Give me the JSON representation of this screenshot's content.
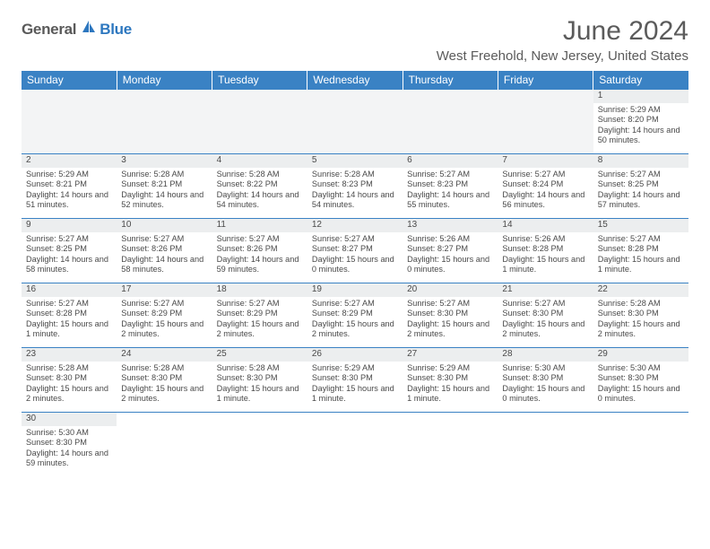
{
  "brand": {
    "part1": "General",
    "part2": "Blue",
    "color1": "#5a5a5a",
    "color2": "#2d77bf"
  },
  "title": "June 2024",
  "location": "West Freehold, New Jersey, United States",
  "colors": {
    "header_bg": "#3a82c4",
    "header_text": "#ffffff",
    "daynum_bg": "#eceeef",
    "text": "#4a4a4a",
    "rule": "#3a82c4"
  },
  "day_headers": [
    "Sunday",
    "Monday",
    "Tuesday",
    "Wednesday",
    "Thursday",
    "Friday",
    "Saturday"
  ],
  "weeks": [
    [
      null,
      null,
      null,
      null,
      null,
      null,
      {
        "n": "1",
        "sr": "Sunrise: 5:29 AM",
        "ss": "Sunset: 8:20 PM",
        "dl": "Daylight: 14 hours and 50 minutes."
      }
    ],
    [
      {
        "n": "2",
        "sr": "Sunrise: 5:29 AM",
        "ss": "Sunset: 8:21 PM",
        "dl": "Daylight: 14 hours and 51 minutes."
      },
      {
        "n": "3",
        "sr": "Sunrise: 5:28 AM",
        "ss": "Sunset: 8:21 PM",
        "dl": "Daylight: 14 hours and 52 minutes."
      },
      {
        "n": "4",
        "sr": "Sunrise: 5:28 AM",
        "ss": "Sunset: 8:22 PM",
        "dl": "Daylight: 14 hours and 54 minutes."
      },
      {
        "n": "5",
        "sr": "Sunrise: 5:28 AM",
        "ss": "Sunset: 8:23 PM",
        "dl": "Daylight: 14 hours and 54 minutes."
      },
      {
        "n": "6",
        "sr": "Sunrise: 5:27 AM",
        "ss": "Sunset: 8:23 PM",
        "dl": "Daylight: 14 hours and 55 minutes."
      },
      {
        "n": "7",
        "sr": "Sunrise: 5:27 AM",
        "ss": "Sunset: 8:24 PM",
        "dl": "Daylight: 14 hours and 56 minutes."
      },
      {
        "n": "8",
        "sr": "Sunrise: 5:27 AM",
        "ss": "Sunset: 8:25 PM",
        "dl": "Daylight: 14 hours and 57 minutes."
      }
    ],
    [
      {
        "n": "9",
        "sr": "Sunrise: 5:27 AM",
        "ss": "Sunset: 8:25 PM",
        "dl": "Daylight: 14 hours and 58 minutes."
      },
      {
        "n": "10",
        "sr": "Sunrise: 5:27 AM",
        "ss": "Sunset: 8:26 PM",
        "dl": "Daylight: 14 hours and 58 minutes."
      },
      {
        "n": "11",
        "sr": "Sunrise: 5:27 AM",
        "ss": "Sunset: 8:26 PM",
        "dl": "Daylight: 14 hours and 59 minutes."
      },
      {
        "n": "12",
        "sr": "Sunrise: 5:27 AM",
        "ss": "Sunset: 8:27 PM",
        "dl": "Daylight: 15 hours and 0 minutes."
      },
      {
        "n": "13",
        "sr": "Sunrise: 5:26 AM",
        "ss": "Sunset: 8:27 PM",
        "dl": "Daylight: 15 hours and 0 minutes."
      },
      {
        "n": "14",
        "sr": "Sunrise: 5:26 AM",
        "ss": "Sunset: 8:28 PM",
        "dl": "Daylight: 15 hours and 1 minute."
      },
      {
        "n": "15",
        "sr": "Sunrise: 5:27 AM",
        "ss": "Sunset: 8:28 PM",
        "dl": "Daylight: 15 hours and 1 minute."
      }
    ],
    [
      {
        "n": "16",
        "sr": "Sunrise: 5:27 AM",
        "ss": "Sunset: 8:28 PM",
        "dl": "Daylight: 15 hours and 1 minute."
      },
      {
        "n": "17",
        "sr": "Sunrise: 5:27 AM",
        "ss": "Sunset: 8:29 PM",
        "dl": "Daylight: 15 hours and 2 minutes."
      },
      {
        "n": "18",
        "sr": "Sunrise: 5:27 AM",
        "ss": "Sunset: 8:29 PM",
        "dl": "Daylight: 15 hours and 2 minutes."
      },
      {
        "n": "19",
        "sr": "Sunrise: 5:27 AM",
        "ss": "Sunset: 8:29 PM",
        "dl": "Daylight: 15 hours and 2 minutes."
      },
      {
        "n": "20",
        "sr": "Sunrise: 5:27 AM",
        "ss": "Sunset: 8:30 PM",
        "dl": "Daylight: 15 hours and 2 minutes."
      },
      {
        "n": "21",
        "sr": "Sunrise: 5:27 AM",
        "ss": "Sunset: 8:30 PM",
        "dl": "Daylight: 15 hours and 2 minutes."
      },
      {
        "n": "22",
        "sr": "Sunrise: 5:28 AM",
        "ss": "Sunset: 8:30 PM",
        "dl": "Daylight: 15 hours and 2 minutes."
      }
    ],
    [
      {
        "n": "23",
        "sr": "Sunrise: 5:28 AM",
        "ss": "Sunset: 8:30 PM",
        "dl": "Daylight: 15 hours and 2 minutes."
      },
      {
        "n": "24",
        "sr": "Sunrise: 5:28 AM",
        "ss": "Sunset: 8:30 PM",
        "dl": "Daylight: 15 hours and 2 minutes."
      },
      {
        "n": "25",
        "sr": "Sunrise: 5:28 AM",
        "ss": "Sunset: 8:30 PM",
        "dl": "Daylight: 15 hours and 1 minute."
      },
      {
        "n": "26",
        "sr": "Sunrise: 5:29 AM",
        "ss": "Sunset: 8:30 PM",
        "dl": "Daylight: 15 hours and 1 minute."
      },
      {
        "n": "27",
        "sr": "Sunrise: 5:29 AM",
        "ss": "Sunset: 8:30 PM",
        "dl": "Daylight: 15 hours and 1 minute."
      },
      {
        "n": "28",
        "sr": "Sunrise: 5:30 AM",
        "ss": "Sunset: 8:30 PM",
        "dl": "Daylight: 15 hours and 0 minutes."
      },
      {
        "n": "29",
        "sr": "Sunrise: 5:30 AM",
        "ss": "Sunset: 8:30 PM",
        "dl": "Daylight: 15 hours and 0 minutes."
      }
    ],
    [
      {
        "n": "30",
        "sr": "Sunrise: 5:30 AM",
        "ss": "Sunset: 8:30 PM",
        "dl": "Daylight: 14 hours and 59 minutes."
      },
      null,
      null,
      null,
      null,
      null,
      null
    ]
  ]
}
